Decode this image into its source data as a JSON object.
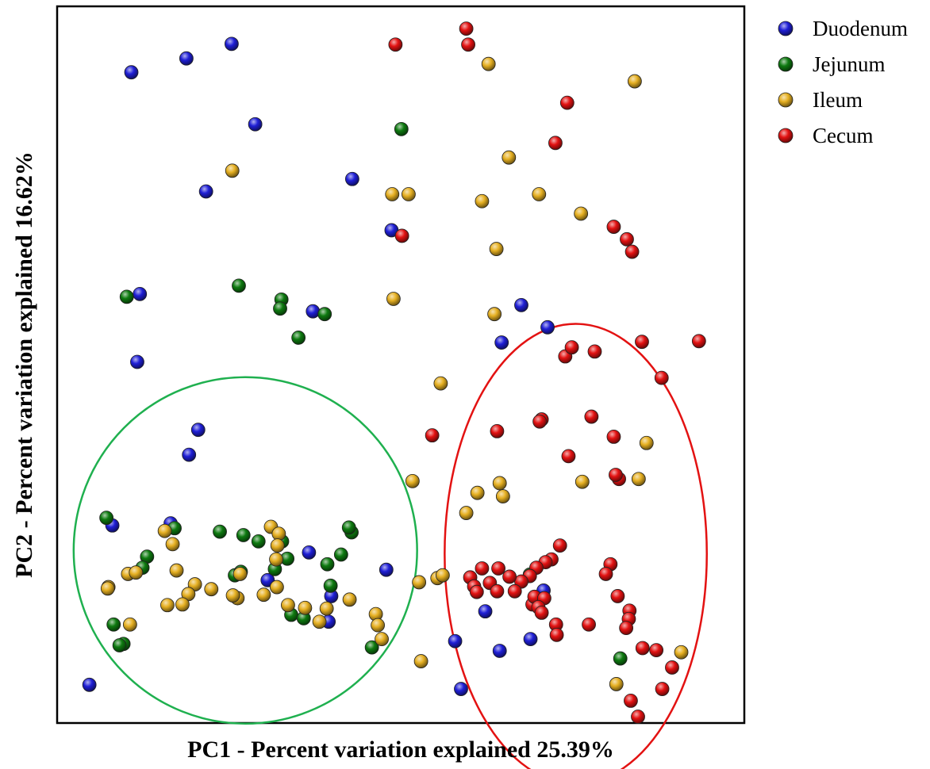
{
  "chart_data": {
    "type": "scatter",
    "title": "",
    "xlabel": "PC1 - Percent variation explained 25.39%",
    "ylabel": "PC2 - Percent variation explained 16.62%",
    "xlim": [
      0,
      100
    ],
    "ylim": [
      0,
      100
    ],
    "ticks_visible": false,
    "grid": false,
    "legend_position": "top-right-outside",
    "series": [
      {
        "name": "Duodenum",
        "color": "#1f1fd6",
        "points": [
          [
            2.5,
            4.6
          ],
          [
            20.3,
            75.8
          ],
          [
            27.8,
            85.5
          ],
          [
            8.9,
            93.0
          ],
          [
            17.3,
            95.0
          ],
          [
            24.2,
            97.1
          ],
          [
            9.8,
            51.2
          ],
          [
            19.1,
            41.4
          ],
          [
            10.2,
            61.0
          ],
          [
            17.7,
            37.8
          ],
          [
            6.0,
            27.6
          ],
          [
            14.9,
            27.9
          ],
          [
            36.6,
            58.5
          ],
          [
            42.6,
            77.6
          ],
          [
            48.6,
            70.2
          ],
          [
            29.7,
            19.7
          ],
          [
            36.0,
            23.7
          ],
          [
            39.4,
            17.4
          ],
          [
            47.8,
            21.2
          ],
          [
            39.0,
            13.7
          ],
          [
            59.2,
            4.0
          ],
          [
            58.3,
            10.9
          ],
          [
            62.9,
            15.2
          ],
          [
            72.4,
            56.2
          ],
          [
            65.4,
            54.0
          ],
          [
            68.4,
            59.4
          ],
          [
            71.8,
            18.2
          ],
          [
            69.8,
            11.2
          ],
          [
            65.1,
            9.5
          ]
        ]
      },
      {
        "name": "Jejunum",
        "color": "#0e7a10",
        "points": [
          [
            8.2,
            60.6
          ],
          [
            25.3,
            62.2
          ],
          [
            31.8,
            60.2
          ],
          [
            31.6,
            58.9
          ],
          [
            38.4,
            58.1
          ],
          [
            34.4,
            54.7
          ],
          [
            5.1,
            28.7
          ],
          [
            15.5,
            27.2
          ],
          [
            22.4,
            26.7
          ],
          [
            26.0,
            26.2
          ],
          [
            28.3,
            25.3
          ],
          [
            32.7,
            22.8
          ],
          [
            31.9,
            25.3
          ],
          [
            11.3,
            23.1
          ],
          [
            10.6,
            21.5
          ],
          [
            6.2,
            13.3
          ],
          [
            7.7,
            10.5
          ],
          [
            7.1,
            10.3
          ],
          [
            24.7,
            20.4
          ],
          [
            25.6,
            20.9
          ],
          [
            30.8,
            21.3
          ],
          [
            38.8,
            22.0
          ],
          [
            40.9,
            23.4
          ],
          [
            42.5,
            26.6
          ],
          [
            39.3,
            18.9
          ],
          [
            33.3,
            14.7
          ],
          [
            35.2,
            14.2
          ],
          [
            42.1,
            27.3
          ],
          [
            45.6,
            10.0
          ],
          [
            50.1,
            84.8
          ],
          [
            69.7,
            20.5
          ],
          [
            83.5,
            8.4
          ]
        ]
      },
      {
        "name": "Ileum",
        "color": "#e6b022",
        "points": [
          [
            24.3,
            78.8
          ],
          [
            48.7,
            75.4
          ],
          [
            51.2,
            75.4
          ],
          [
            48.9,
            60.3
          ],
          [
            51.8,
            34.0
          ],
          [
            14.0,
            26.8
          ],
          [
            15.2,
            24.9
          ],
          [
            30.2,
            27.4
          ],
          [
            31.4,
            26.4
          ],
          [
            31.2,
            24.7
          ],
          [
            31.0,
            22.7
          ],
          [
            15.8,
            21.1
          ],
          [
            8.4,
            20.6
          ],
          [
            9.6,
            20.8
          ],
          [
            25.5,
            20.6
          ],
          [
            5.4,
            18.7
          ],
          [
            5.3,
            18.5
          ],
          [
            18.6,
            19.1
          ],
          [
            21.1,
            18.4
          ],
          [
            31.1,
            18.7
          ],
          [
            17.6,
            17.7
          ],
          [
            25.1,
            17.1
          ],
          [
            24.4,
            17.5
          ],
          [
            14.4,
            16.1
          ],
          [
            8.7,
            13.3
          ],
          [
            16.7,
            16.2
          ],
          [
            29.1,
            17.6
          ],
          [
            32.8,
            16.1
          ],
          [
            35.4,
            15.7
          ],
          [
            38.7,
            15.6
          ],
          [
            37.6,
            13.7
          ],
          [
            42.2,
            16.9
          ],
          [
            46.2,
            14.8
          ],
          [
            47.1,
            11.2
          ],
          [
            46.5,
            13.2
          ],
          [
            53.1,
            8.0
          ],
          [
            55.6,
            20.0
          ],
          [
            56.4,
            20.4
          ],
          [
            52.8,
            19.4
          ],
          [
            63.4,
            94.2
          ],
          [
            65.1,
            33.7
          ],
          [
            65.6,
            31.8
          ],
          [
            61.7,
            32.3
          ],
          [
            60.0,
            29.4
          ],
          [
            56.1,
            48.1
          ],
          [
            62.4,
            74.4
          ],
          [
            66.5,
            80.7
          ],
          [
            71.1,
            75.4
          ],
          [
            77.5,
            72.6
          ],
          [
            85.7,
            91.7
          ],
          [
            77.7,
            33.9
          ],
          [
            86.3,
            34.3
          ],
          [
            87.5,
            39.5
          ],
          [
            92.8,
            9.3
          ],
          [
            64.6,
            67.5
          ],
          [
            64.3,
            58.1
          ],
          [
            82.9,
            4.7
          ]
        ]
      },
      {
        "name": "Cecum",
        "color": "#e31212",
        "points": [
          [
            60.0,
            99.3
          ],
          [
            60.3,
            97.0
          ],
          [
            49.2,
            97.0
          ],
          [
            50.2,
            69.4
          ],
          [
            75.4,
            88.6
          ],
          [
            73.6,
            82.8
          ],
          [
            82.5,
            70.7
          ],
          [
            84.5,
            68.9
          ],
          [
            85.3,
            67.1
          ],
          [
            95.5,
            54.2
          ],
          [
            79.6,
            52.7
          ],
          [
            75.1,
            52.0
          ],
          [
            76.1,
            53.3
          ],
          [
            79.1,
            43.3
          ],
          [
            82.5,
            40.4
          ],
          [
            83.3,
            34.3
          ],
          [
            86.8,
            54.1
          ],
          [
            89.8,
            48.9
          ],
          [
            82.8,
            34.9
          ],
          [
            75.6,
            37.6
          ],
          [
            71.5,
            42.9
          ],
          [
            71.2,
            42.6
          ],
          [
            64.7,
            41.2
          ],
          [
            54.8,
            40.6
          ],
          [
            74.3,
            24.7
          ],
          [
            73.0,
            22.7
          ],
          [
            72.1,
            22.3
          ],
          [
            70.7,
            21.5
          ],
          [
            69.7,
            20.3
          ],
          [
            68.4,
            19.5
          ],
          [
            66.6,
            20.2
          ],
          [
            64.9,
            21.4
          ],
          [
            62.4,
            21.4
          ],
          [
            60.6,
            20.1
          ],
          [
            61.2,
            18.8
          ],
          [
            61.6,
            18.0
          ],
          [
            63.6,
            19.3
          ],
          [
            64.7,
            18.1
          ],
          [
            67.4,
            18.1
          ],
          [
            70.1,
            16.2
          ],
          [
            70.4,
            17.3
          ],
          [
            71.9,
            17.1
          ],
          [
            71.0,
            15.8
          ],
          [
            71.5,
            15.0
          ],
          [
            73.7,
            13.3
          ],
          [
            73.8,
            11.8
          ],
          [
            78.7,
            13.3
          ],
          [
            82.0,
            22.0
          ],
          [
            81.3,
            20.6
          ],
          [
            83.1,
            17.4
          ],
          [
            84.9,
            15.3
          ],
          [
            84.8,
            14.1
          ],
          [
            84.4,
            12.8
          ],
          [
            86.9,
            9.9
          ],
          [
            89.0,
            9.6
          ],
          [
            91.4,
            7.1
          ],
          [
            89.9,
            4.0
          ],
          [
            85.1,
            2.3
          ],
          [
            86.2,
            0.0
          ]
        ]
      }
    ],
    "ellipses": [
      {
        "color": "#1fb04f",
        "center": [
          26.3,
          24.0
        ],
        "radii": [
          26.2,
          25.0
        ]
      },
      {
        "color": "#e31212",
        "center": [
          76.7,
          23.5
        ],
        "radii": [
          20.0,
          33.2
        ]
      }
    ]
  }
}
